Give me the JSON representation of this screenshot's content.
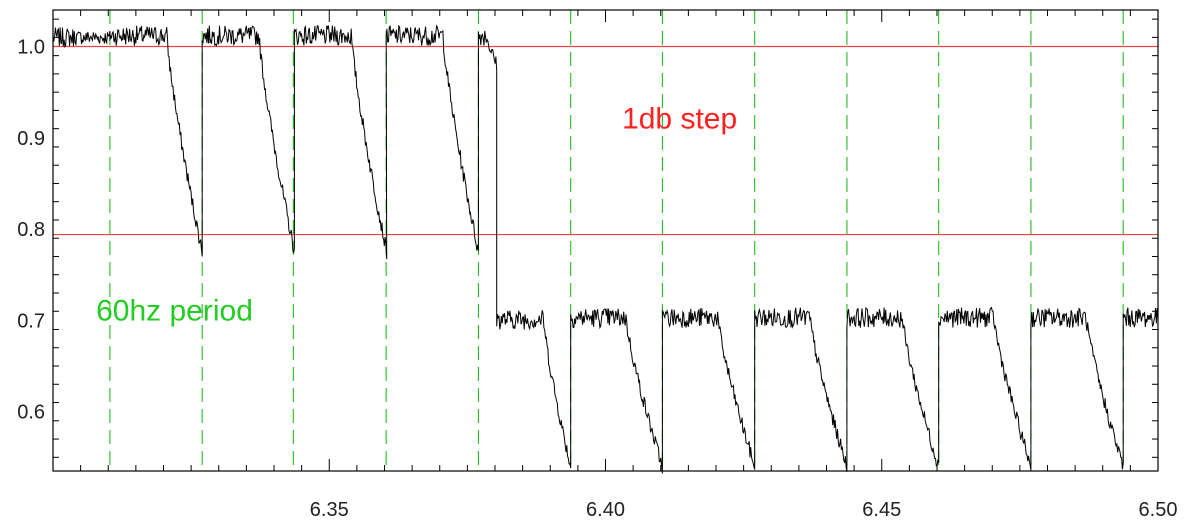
{
  "chart_data": {
    "type": "line",
    "title": "",
    "xlabel": "",
    "ylabel": "",
    "xlim": [
      6.3,
      6.5
    ],
    "ylim": [
      0.535,
      1.04
    ],
    "x_ticks": [
      "6.35",
      "6.40",
      "6.45",
      "6.50"
    ],
    "y_ticks": [
      "0.6",
      "0.7",
      "0.8",
      "0.9",
      "1.0"
    ],
    "reference_lines": [
      1.0,
      0.794
    ],
    "period_markers": [
      6.3103,
      6.327,
      6.3435,
      6.3603,
      6.377,
      6.3937,
      6.4103,
      6.427,
      6.4437,
      6.4603,
      6.477,
      6.4937
    ],
    "annotations": [
      {
        "text": "1db step",
        "x": 6.403,
        "y": 0.91,
        "color": "#ff2020"
      },
      {
        "text": "60hz period",
        "x": 6.3078,
        "y": 0.7,
        "color": "#22cc22"
      }
    ],
    "series": [
      {
        "color": "#000000",
        "segments": [
          {
            "start": 6.3,
            "high": 1.01,
            "low": 1.01,
            "hold": 0.004,
            "duration": 0.0103
          },
          {
            "start": 6.3103,
            "high": 1.012,
            "low": 0.775,
            "hold": 0.0103,
            "duration": 0.0167
          },
          {
            "start": 6.327,
            "high": 1.012,
            "low": 0.775,
            "hold": 0.0103,
            "duration": 0.0167
          },
          {
            "start": 6.3437,
            "high": 1.012,
            "low": 0.775,
            "hold": 0.0103,
            "duration": 0.0167
          },
          {
            "start": 6.3603,
            "high": 1.012,
            "low": 0.775,
            "hold": 0.0103,
            "duration": 0.0167
          },
          {
            "start": 6.377,
            "high": 1.012,
            "low": 0.98,
            "hold": 0.0015,
            "duration": 0.0033
          },
          {
            "start": 6.3803,
            "high": 0.701,
            "low": 0.54,
            "hold": 0.0085,
            "duration": 0.0134
          },
          {
            "start": 6.3937,
            "high": 0.703,
            "low": 0.54,
            "hold": 0.01,
            "duration": 0.0166
          },
          {
            "start": 6.4103,
            "high": 0.703,
            "low": 0.54,
            "hold": 0.01,
            "duration": 0.0167
          },
          {
            "start": 6.427,
            "high": 0.703,
            "low": 0.54,
            "hold": 0.01,
            "duration": 0.0167
          },
          {
            "start": 6.4437,
            "high": 0.703,
            "low": 0.54,
            "hold": 0.01,
            "duration": 0.0166
          },
          {
            "start": 6.4603,
            "high": 0.703,
            "low": 0.54,
            "hold": 0.01,
            "duration": 0.0167
          },
          {
            "start": 6.477,
            "high": 0.703,
            "low": 0.54,
            "hold": 0.01,
            "duration": 0.0167
          },
          {
            "start": 6.4937,
            "high": 0.703,
            "low": 0.7,
            "hold": 0.0063,
            "duration": 0.0063
          }
        ]
      }
    ],
    "grid": false,
    "legend": "none"
  }
}
